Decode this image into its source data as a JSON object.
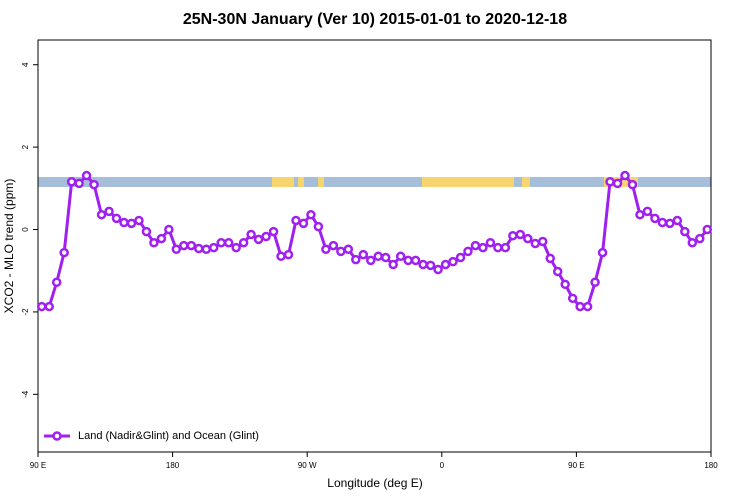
{
  "chart_data": {
    "type": "line",
    "title": "25N-30N January (Ver 10)   2015-01-01 to 2020-12-18",
    "x_label": "Longitude (deg E)",
    "y_label": "XCO2 - MLO trend (ppm)",
    "xlim": [
      90,
      540
    ],
    "ylim": [
      -5.4,
      4.6
    ],
    "xticks": [
      {
        "value": 90,
        "label": "90 E"
      },
      180,
      {
        "value": 270,
        "label": "90 W"
      },
      {
        "value": 360,
        "label": "0"
      },
      {
        "value": 450,
        "label": "90 E"
      },
      {
        "value": 540,
        "label": "180"
      }
    ],
    "yticks": [
      -4,
      -2,
      0,
      2,
      4
    ],
    "legend": "bottomleft",
    "x": [
      92.5,
      97.5,
      102.5,
      107.5,
      112.5,
      117.5,
      122.5,
      127.5,
      132.5,
      137.5,
      142.5,
      147.5,
      152.5,
      157.5,
      162.5,
      167.5,
      172.5,
      177.5,
      182.5,
      187.5,
      192.5,
      197.5,
      202.5,
      207.5,
      212.5,
      217.5,
      222.5,
      227.5,
      232.5,
      237.5,
      242.5,
      247.5,
      252.5,
      257.5,
      262.5,
      267.5,
      272.5,
      277.5,
      282.5,
      287.5,
      292.5,
      297.5,
      302.5,
      307.5,
      312.5,
      317.5,
      322.5,
      327.5,
      332.5,
      337.5,
      342.5,
      347.5,
      352.5,
      357.5,
      362.5,
      367.5,
      372.5,
      377.5,
      382.5,
      387.5,
      392.5,
      397.5,
      402.5,
      407.5,
      412.5,
      417.5,
      422.5,
      427.5,
      432.5,
      437.5,
      442.5,
      447.5,
      452.5,
      457.5,
      462.5,
      467.5,
      472.5,
      477.5,
      482.5,
      487.5,
      492.5,
      497.5,
      502.5,
      507.5,
      512.5,
      517.5,
      522.5,
      527.5,
      532.5,
      537.5
    ],
    "series": [
      {
        "name": "Land (Nadir&Glint) and Ocean (Glint)",
        "color": "#a020f0",
        "values": [
          -1.87,
          -1.87,
          -1.28,
          -0.56,
          1.16,
          1.12,
          1.31,
          1.09,
          0.36,
          0.44,
          0.27,
          0.17,
          0.15,
          0.22,
          -0.05,
          -0.32,
          -0.22,
          0.0,
          -0.48,
          -0.39,
          -0.39,
          -0.46,
          -0.48,
          -0.44,
          -0.32,
          -0.32,
          -0.44,
          -0.32,
          -0.12,
          -0.24,
          -0.17,
          -0.05,
          -0.65,
          -0.61,
          0.22,
          0.15,
          0.36,
          0.07,
          -0.48,
          -0.39,
          -0.53,
          -0.48,
          -0.73,
          -0.61,
          -0.75,
          -0.65,
          -0.68,
          -0.85,
          -0.65,
          -0.75,
          -0.75,
          -0.85,
          -0.87,
          -0.97,
          -0.85,
          -0.78,
          -0.68,
          -0.53,
          -0.39,
          -0.44,
          -0.32,
          -0.44,
          -0.44,
          -0.15,
          -0.12,
          -0.22,
          -0.34,
          -0.29,
          -0.7,
          -1.02,
          -1.33,
          -1.67,
          -1.87,
          -1.87,
          -1.28,
          -0.56,
          1.16,
          1.12,
          1.31,
          1.09,
          0.36,
          0.44,
          0.27,
          0.17,
          0.15,
          0.22,
          -0.05,
          -0.32,
          -0.22,
          0.0
        ]
      }
    ]
  }
}
